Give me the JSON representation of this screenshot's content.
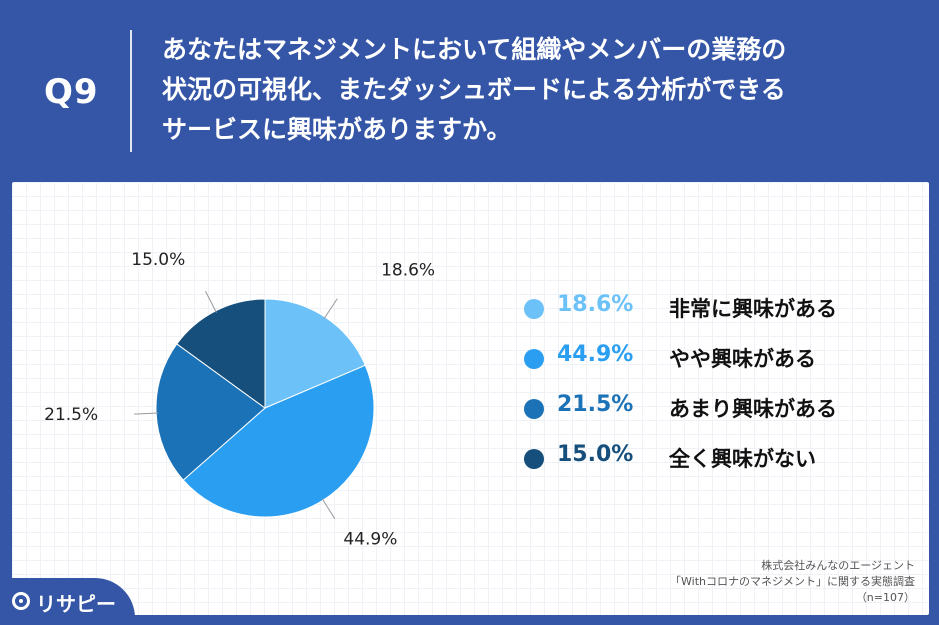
{
  "header": {
    "question_number": "Q9",
    "question_lines": [
      "あなたはマネジメントにおいて組織やメンバーの業務の",
      "状況の可視化、またダッシュボードによる分析ができる",
      "サービスに興味がありますか。"
    ]
  },
  "chart_data": {
    "type": "pie",
    "categories": [
      "非常に興味がある",
      "やや興味がある",
      "あまり興味がある",
      "全く興味がない"
    ],
    "values": [
      18.6,
      44.9,
      21.5,
      15.0
    ],
    "labels": [
      "18.6%",
      "44.9%",
      "21.5%",
      "15.0%"
    ],
    "colors": [
      "#6cc1f8",
      "#2a9ef1",
      "#1c72b6",
      "#164f7c"
    ],
    "title": "",
    "legend_placement": "right"
  },
  "source": {
    "line1": "株式会社みんなのエージェント",
    "line2": "「Withコロナのマネジメント」に関する実態調査",
    "line3": "（n=107）"
  },
  "logo": {
    "text": "リサピー"
  }
}
